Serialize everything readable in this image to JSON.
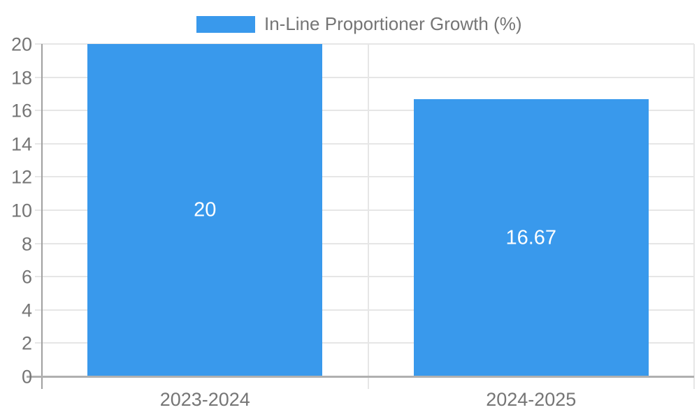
{
  "chart_data": {
    "type": "bar",
    "title": "",
    "legend_label": "In-Line Proportioner Growth (%)",
    "legend_position": "top-center",
    "categories": [
      "2023-2024",
      "2024-2025"
    ],
    "series": [
      {
        "name": "In-Line Proportioner Growth (%)",
        "values": [
          20,
          16.67
        ]
      }
    ],
    "value_labels": [
      "20",
      "16.67"
    ],
    "ylim": [
      0,
      20
    ],
    "ytick_step": 2,
    "yticks": [
      0,
      2,
      4,
      6,
      8,
      10,
      12,
      14,
      16,
      18,
      20
    ],
    "grid": true,
    "colors": {
      "bar": "#3999EC",
      "legend_text": "#757575",
      "axis_text": "#757575",
      "value_label_text": "#ffffff",
      "gridline": "#e6e6e6",
      "x_axis_line": "#b0b0b0",
      "y_axis_line": "#a0a0a0",
      "background": "#ffffff"
    }
  }
}
